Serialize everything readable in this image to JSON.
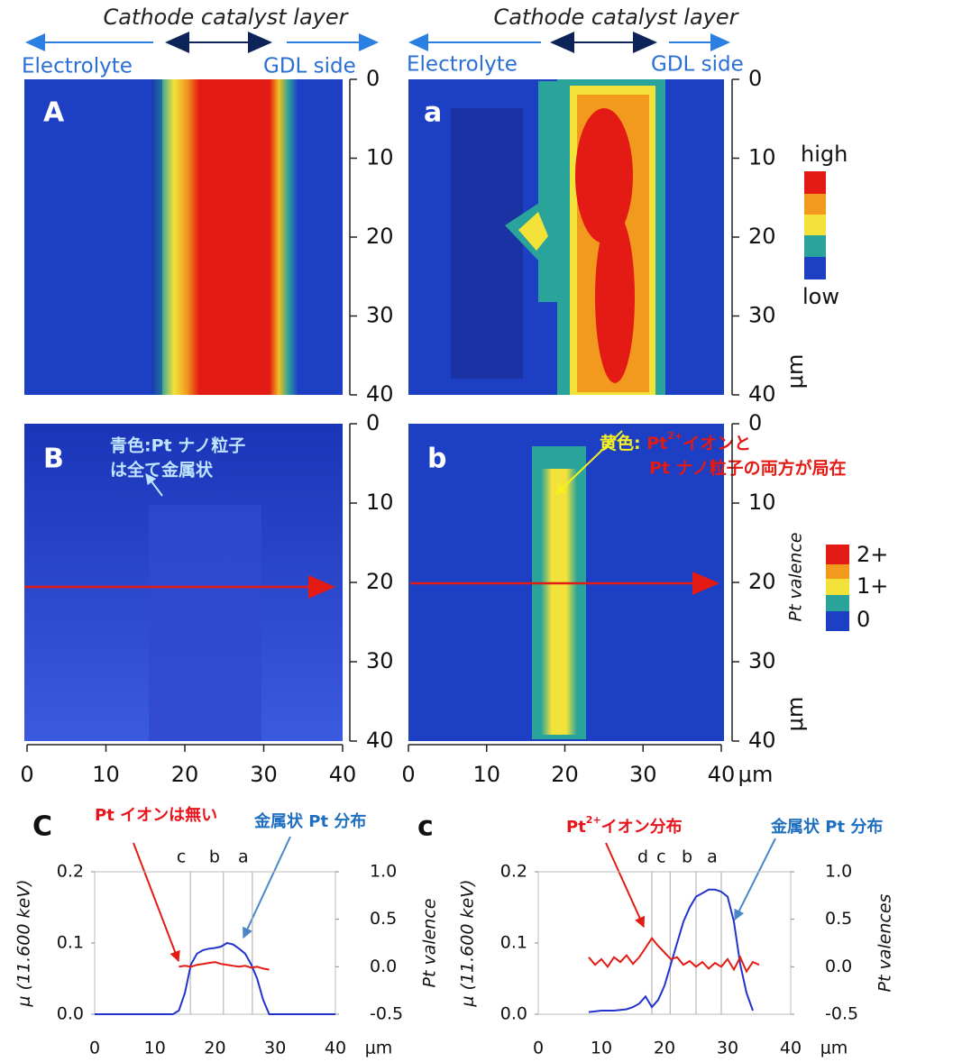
{
  "header": {
    "title": "Cathode catalyst layer",
    "left": "Electrolyte",
    "right": "GDL side"
  },
  "maps": {
    "ticks": [
      0,
      10,
      20,
      30,
      40
    ],
    "unit": "μm",
    "panels": [
      {
        "label": "A"
      },
      {
        "label": "a"
      },
      {
        "label": "B",
        "note": [
          "青色:Pt ナノ粒子",
          "は全て金属状"
        ]
      },
      {
        "label": "b",
        "note": [
          "黄色: ",
          "Pt",
          "2+",
          "イオンと",
          "Pt ナノ粒子の両方が局在"
        ]
      }
    ],
    "legend_top": [
      "high",
      "low"
    ],
    "legend_bottom": {
      "title": "Pt  valence",
      "labels": [
        "2+",
        "1+",
        "0"
      ]
    }
  },
  "chart_data": [
    {
      "type": "line",
      "label": "C",
      "ylabel": "μ (11.600 keV)",
      "y2label": "Pt valence",
      "xunit": "μm",
      "annotations": [
        "Pt イオンは無い",
        "金属状 Pt 分布"
      ],
      "xlim": [
        0,
        40
      ],
      "xticks": [
        0,
        10,
        20,
        30,
        40
      ],
      "ylim": [
        0,
        0.2
      ],
      "yticks": [
        {
          "value": 0,
          "label": "0.0"
        },
        0.1,
        0.2
      ],
      "y2lim": [
        -0.5,
        1.0
      ],
      "y2ticks": [
        -0.5,
        {
          "value": 0,
          "label": "0.0"
        },
        0.5,
        {
          "value": 1,
          "label": "1.0"
        }
      ],
      "markers": {
        "x": [
          15.9,
          21.4,
          26.2
        ],
        "labels": [
          "c",
          "b",
          "a"
        ]
      },
      "series": [
        {
          "color": "#2233cc",
          "x": [
            0,
            5,
            10,
            13,
            14,
            15,
            16,
            17,
            18,
            19,
            20,
            21,
            22,
            23,
            24,
            25,
            26,
            27,
            28,
            29,
            30,
            35,
            40
          ],
          "values": [
            0,
            0,
            0,
            0,
            0.005,
            0.03,
            0.07,
            0.085,
            0.09,
            0.092,
            0.093,
            0.095,
            0.1,
            0.098,
            0.092,
            0.085,
            0.07,
            0.05,
            0.02,
            0,
            0,
            0,
            0
          ]
        },
        {
          "color": "#e41a14",
          "axis": "y2",
          "x": [
            14,
            15,
            16,
            17,
            18,
            19,
            20,
            21,
            22,
            23,
            24,
            25,
            26,
            27,
            28,
            29
          ],
          "values": [
            0.0,
            0.01,
            0.0,
            0.02,
            0.03,
            0.04,
            0.05,
            0.03,
            0.02,
            0.01,
            0.0,
            0.01,
            -0.01,
            0.0,
            -0.02,
            -0.03
          ]
        }
      ]
    },
    {
      "type": "line",
      "label": "c",
      "ylabel": "μ (11.600 keV)",
      "y2label": "Pt valences",
      "xunit": "μm",
      "annotations": [
        "Pt",
        "2+",
        "イオン分布",
        "金属状 Pt 分布"
      ],
      "xlim": [
        0,
        40
      ],
      "xticks": [
        0,
        10,
        20,
        30,
        40
      ],
      "ylim": [
        0,
        0.2
      ],
      "yticks": [
        {
          "value": 0,
          "label": "0.0"
        },
        0.1,
        0.2
      ],
      "y2lim": [
        -0.5,
        1.0
      ],
      "y2ticks": [
        -0.5,
        {
          "value": 0,
          "label": "0.0"
        },
        0.5,
        {
          "value": 1,
          "label": "1.0"
        }
      ],
      "markers": {
        "x": [
          18,
          20.9,
          25,
          29
        ],
        "labels": [
          "d",
          "c",
          "b",
          "a"
        ]
      },
      "series": [
        {
          "color": "#2233cc",
          "x": [
            8,
            10,
            12,
            14,
            15,
            16,
            17,
            18,
            19,
            20,
            21,
            22,
            23,
            24,
            25,
            26,
            27,
            28,
            29,
            30,
            31,
            32,
            33,
            34
          ],
          "values": [
            0.003,
            0.005,
            0.005,
            0.007,
            0.01,
            0.015,
            0.025,
            0.01,
            0.02,
            0.04,
            0.07,
            0.1,
            0.13,
            0.15,
            0.165,
            0.17,
            0.175,
            0.175,
            0.172,
            0.165,
            0.13,
            0.07,
            0.03,
            0.005
          ]
        },
        {
          "color": "#e41a14",
          "axis": "y2",
          "x": [
            8,
            9,
            10,
            11,
            12,
            13,
            14,
            15,
            16,
            17,
            18,
            19,
            20,
            21,
            22,
            23,
            24,
            25,
            26,
            27,
            28,
            29,
            30,
            31,
            32,
            33,
            34,
            35
          ],
          "values": [
            0.1,
            0.02,
            0.08,
            0.0,
            0.1,
            0.05,
            0.12,
            0.03,
            0.1,
            0.2,
            0.3,
            0.22,
            0.15,
            0.08,
            0.1,
            0.02,
            0.06,
            0.0,
            0.05,
            -0.02,
            0.04,
            0.0,
            0.08,
            -0.03,
            0.1,
            -0.05,
            0.05,
            0.02
          ]
        }
      ]
    }
  ]
}
